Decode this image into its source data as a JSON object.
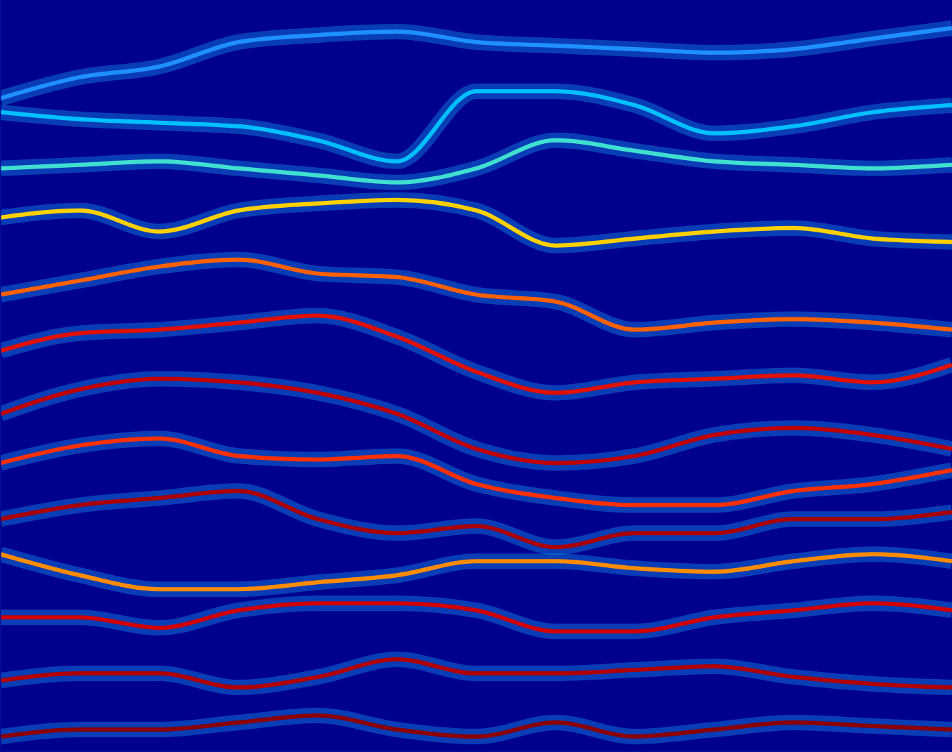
{
  "chart_data": {
    "type": "line",
    "tick_labels": false,
    "grid": false,
    "x": [
      0,
      113,
      226,
      339,
      452,
      565,
      678,
      791,
      904,
      1017,
      1130,
      1243,
      1356
    ],
    "xlim": [
      0,
      1356
    ],
    "ylim": [
      0,
      1071
    ],
    "series": [
      {
        "color": "#1e90ff",
        "values": [
          931,
          961,
          976,
          1011,
          1021,
          1026,
          1011,
          1006,
          1001,
          996,
          1001,
          1016,
          1031
        ]
      },
      {
        "color": "#00bfff",
        "values": [
          911,
          901,
          896,
          891,
          871,
          841,
          941,
          941,
          921,
          881,
          891,
          911,
          921
        ]
      },
      {
        "color": "#40e0d0",
        "values": [
          831,
          836,
          841,
          831,
          821,
          811,
          831,
          871,
          856,
          841,
          836,
          831,
          836
        ]
      },
      {
        "color": "#ffd000",
        "values": [
          761,
          771,
          741,
          771,
          781,
          786,
          771,
          721,
          731,
          741,
          746,
          731,
          726
        ]
      },
      {
        "color": "#ff6000",
        "values": [
          651,
          671,
          691,
          701,
          681,
          676,
          651,
          641,
          601,
          611,
          616,
          611,
          601
        ]
      },
      {
        "color": "#e01000",
        "values": [
          571,
          596,
          601,
          611,
          621,
          591,
          541,
          511,
          526,
          531,
          536,
          526,
          551
        ]
      },
      {
        "color": "#c00000",
        "values": [
          481,
          516,
          531,
          526,
          511,
          481,
          431,
          411,
          421,
          451,
          461,
          451,
          431
        ]
      },
      {
        "color": "#ff3000",
        "values": [
          411,
          436,
          446,
          421,
          416,
          421,
          381,
          361,
          351,
          351,
          371,
          381,
          401
        ]
      },
      {
        "color": "#aa0000",
        "values": [
          331,
          351,
          361,
          371,
          331,
          311,
          321,
          291,
          311,
          311,
          331,
          331,
          341
        ]
      },
      {
        "color": "#ff8c00",
        "values": [
          281,
          251,
          231,
          231,
          241,
          251,
          271,
          271,
          261,
          256,
          271,
          281,
          271
        ]
      },
      {
        "color": "#d00000",
        "values": [
          191,
          191,
          176,
          201,
          211,
          211,
          201,
          171,
          171,
          191,
          201,
          211,
          201
        ]
      },
      {
        "color": "#b00000",
        "values": [
          101,
          111,
          111,
          91,
          106,
          131,
          111,
          111,
          116,
          121,
          106,
          96,
          91
        ]
      },
      {
        "color": "#8b0000",
        "values": [
          21,
          31,
          31,
          41,
          51,
          31,
          21,
          41,
          21,
          31,
          41,
          36,
          31
        ]
      }
    ]
  }
}
